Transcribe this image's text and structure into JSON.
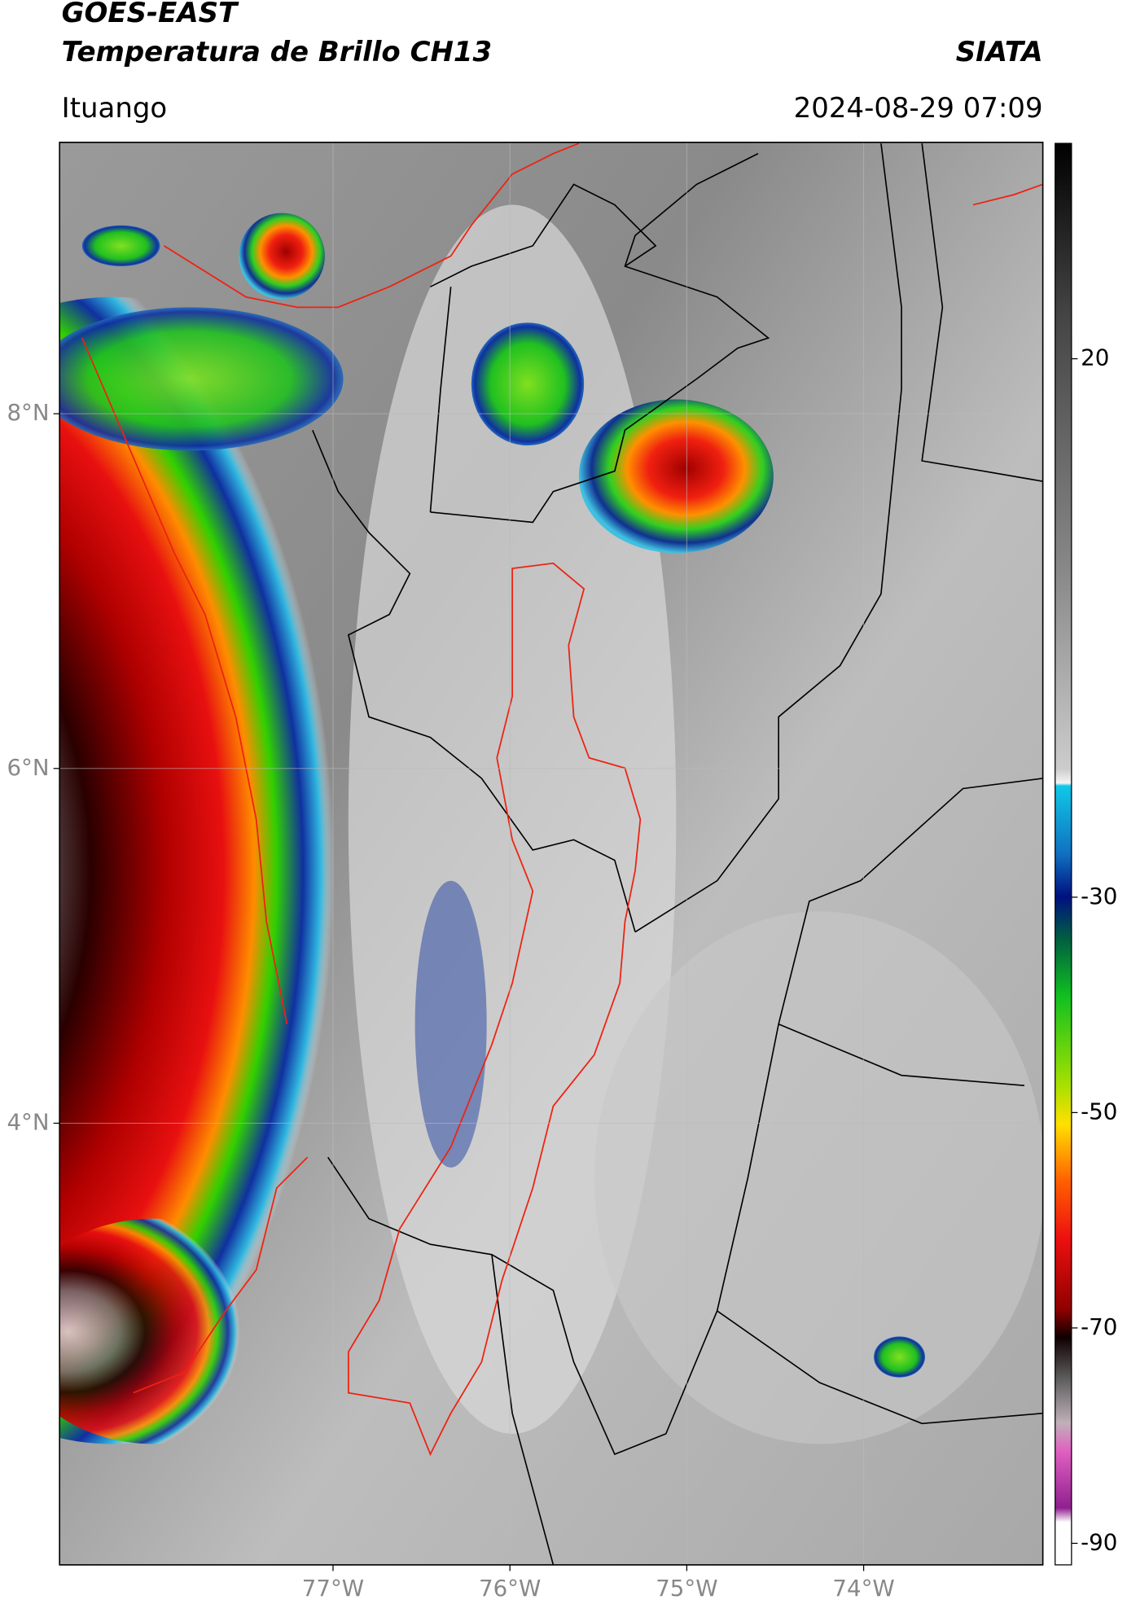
{
  "header": {
    "title": "GOES-EAST",
    "subtitle": "Temperatura de Brillo CH13",
    "source": "SIATA",
    "location": "Ituango",
    "datetime": "2024-08-29 07:09"
  },
  "map": {
    "xlim": [
      -78.546,
      -72.987
    ],
    "ylim": [
      1.51,
      9.53
    ],
    "xticks": [
      {
        "value": -77,
        "label": "77°W"
      },
      {
        "value": -76,
        "label": "76°W"
      },
      {
        "value": -75,
        "label": "75°W"
      },
      {
        "value": -74,
        "label": "74°W"
      }
    ],
    "yticks": [
      {
        "value": 8,
        "label": "8°N"
      },
      {
        "value": 6,
        "label": "6°N"
      },
      {
        "value": 4,
        "label": "4°N"
      }
    ],
    "grid": true
  },
  "colorbar": {
    "lim": [
      -92,
      40
    ],
    "ticks": [
      20,
      -30,
      -50,
      -70,
      -90
    ]
  }
}
